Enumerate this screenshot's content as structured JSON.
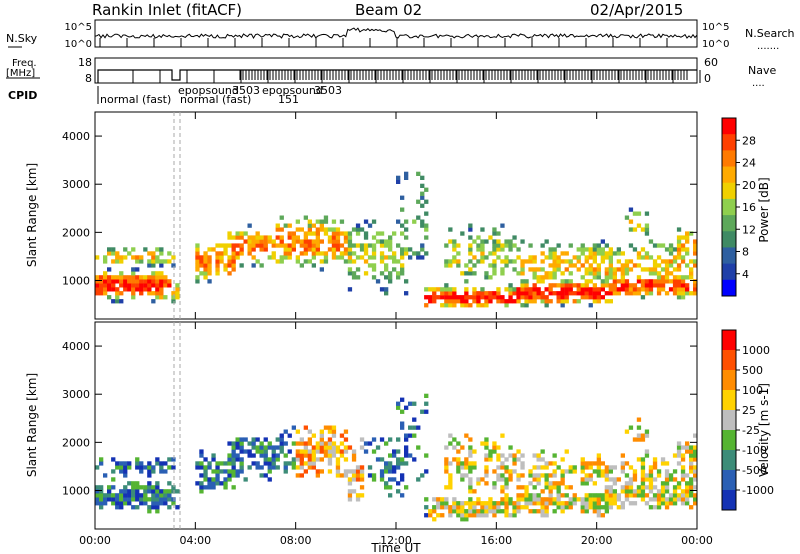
{
  "header": {
    "station": "Rankin Inlet (fitACF)",
    "beam": "Beam 02",
    "date": "02/Apr/2015"
  },
  "top_panel": {
    "nsky_label": "N.Sky",
    "nsearch_label": "N.Search",
    "nsearch_dots": ".......",
    "left_ticks": [
      "10^5",
      "10^0"
    ],
    "right_ticks": [
      "10^5",
      "10^0"
    ],
    "freq_label_1": "Freq.",
    "freq_label_2": "[MHz]",
    "freq_ticks": [
      "18",
      "8"
    ],
    "nave_label": "Nave",
    "nave_dots": "....",
    "nave_ticks": [
      "60",
      "0"
    ],
    "cpid_label": "CPID",
    "cpid_segments": [
      {
        "text": "normal (fast)"
      },
      {
        "text": "epopsound"
      },
      {
        "text": "3503"
      },
      {
        "text": "epopsound"
      },
      {
        "text": "normal (fast)"
      },
      {
        "text": "151"
      },
      {
        "text": "3503"
      }
    ]
  },
  "colors": {
    "power_scale": [
      "#0000ff",
      "#1f3fa8",
      "#2e5fa0",
      "#3f8a64",
      "#5da85a",
      "#8fcf4e",
      "#f0d000",
      "#ffaa00",
      "#ff7a00",
      "#ff4000",
      "#ff0000"
    ],
    "velocity_scale": [
      "#1432b4",
      "#2a5fb4",
      "#3c8c78",
      "#55b432",
      "#bebebe",
      "#ffd200",
      "#ff8c00",
      "#ff5000",
      "#ff0000"
    ]
  },
  "chart_data": [
    {
      "type": "heatmap",
      "title": "Power",
      "xlabel": "",
      "ylabel": "Slant Range [km]",
      "x_ticks": [
        "00:00",
        "04:00",
        "08:00",
        "12:00",
        "16:00",
        "20:00",
        "00:00"
      ],
      "y_ticks": [
        "1000",
        "2000",
        "3000",
        "4000"
      ],
      "ylim": [
        200,
        4500
      ],
      "colorbar": {
        "label": "Power [dB]",
        "ticks": [
          "28",
          "24",
          "20",
          "16",
          "12",
          "8",
          "4"
        ],
        "range": [
          0,
          32
        ]
      }
    },
    {
      "type": "heatmap",
      "title": "Velocity",
      "xlabel": "Time UT",
      "ylabel": "Slant Range [km]",
      "x_ticks": [
        "00:00",
        "04:00",
        "08:00",
        "12:00",
        "16:00",
        "20:00",
        "00:00"
      ],
      "y_ticks": [
        "1000",
        "2000",
        "3000",
        "4000"
      ],
      "ylim": [
        200,
        4500
      ],
      "colorbar": {
        "label": "Velocity [m s-1]",
        "ticks": [
          "1000",
          "500",
          "100",
          "25",
          "-25",
          "-100",
          "-500",
          "-1000"
        ]
      }
    }
  ]
}
